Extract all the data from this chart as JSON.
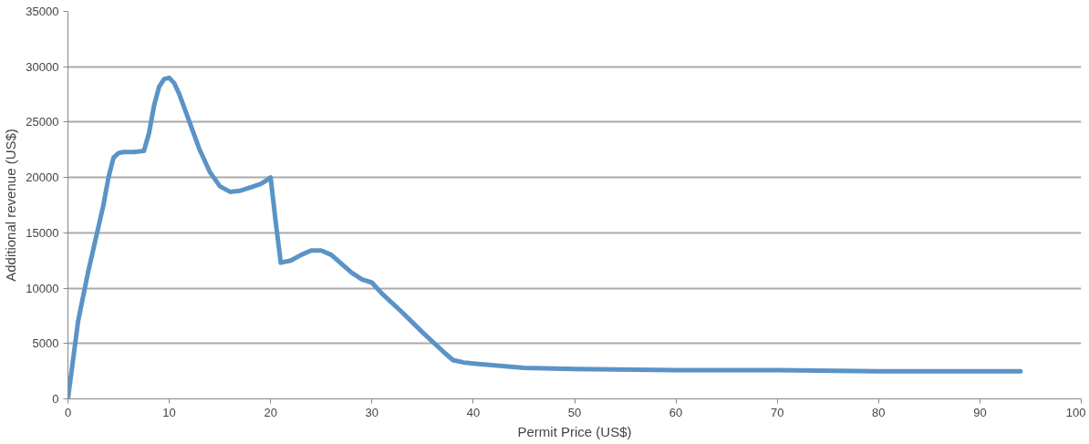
{
  "chart_data": {
    "type": "line",
    "xlabel": "Permit Price (US$)",
    "ylabel": "Additional revenue (US$)",
    "series": [
      {
        "color": "#5b93c7",
        "x": [
          0,
          0.5,
          1,
          2,
          3,
          3.5,
          4,
          4.5,
          5,
          5.5,
          6.5,
          7.5,
          8,
          8.5,
          9,
          9.5,
          10,
          10.5,
          11,
          12,
          13,
          14,
          15,
          16,
          17,
          18,
          19,
          19.7,
          20,
          20.5,
          21,
          22,
          23,
          24,
          25,
          26,
          27,
          28,
          29,
          30,
          31,
          33,
          35,
          37,
          38,
          39,
          40,
          45,
          50,
          60,
          70,
          80,
          94
        ],
        "values": [
          0,
          3500,
          7000,
          11500,
          15500,
          17500,
          20000,
          21800,
          22200,
          22300,
          22300,
          22400,
          24000,
          26500,
          28200,
          28900,
          29000,
          28500,
          27500,
          25000,
          22500,
          20500,
          19200,
          18700,
          18800,
          19100,
          19400,
          19800,
          20000,
          16000,
          12300,
          12500,
          13000,
          13400,
          13400,
          13000,
          12200,
          11400,
          10800,
          10500,
          9500,
          7800,
          6000,
          4300,
          3500,
          3300,
          3200,
          2800,
          2700,
          2600,
          2600,
          2500,
          2500
        ]
      }
    ],
    "xlim": [
      0,
      100
    ],
    "xticks": [
      0,
      10,
      20,
      30,
      40,
      50,
      60,
      70,
      80,
      90,
      100
    ],
    "ylim": [
      0,
      35000
    ],
    "yticks": [
      0,
      5000,
      10000,
      15000,
      20000,
      25000,
      30000,
      35000
    ],
    "grid": "y",
    "marker": "none",
    "line_style": "solid"
  }
}
